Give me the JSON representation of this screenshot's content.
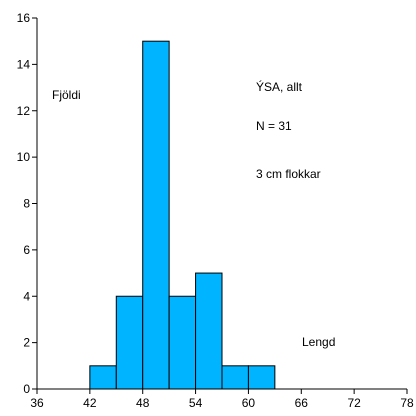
{
  "chart_data": {
    "type": "bar",
    "bin_width": 3,
    "bins": [
      {
        "start": 42,
        "end": 45,
        "count": 1
      },
      {
        "start": 45,
        "end": 48,
        "count": 4
      },
      {
        "start": 48,
        "end": 51,
        "count": 15
      },
      {
        "start": 51,
        "end": 54,
        "count": 4
      },
      {
        "start": 54,
        "end": 57,
        "count": 5
      },
      {
        "start": 57,
        "end": 60,
        "count": 1
      },
      {
        "start": 60,
        "end": 63,
        "count": 1
      }
    ],
    "xlim": [
      36,
      78
    ],
    "ylim": [
      0,
      16
    ],
    "x_ticks": [
      36,
      42,
      48,
      54,
      60,
      66,
      72,
      78
    ],
    "y_ticks": [
      0,
      2,
      4,
      6,
      8,
      10,
      12,
      14,
      16
    ],
    "bar_color": "#00B4FF",
    "grid": false,
    "ylabel": "Fjöldi",
    "xlabel": "Lengd",
    "annotations": [
      "ÝSA, allt",
      "N = 31",
      "3 cm flokkar"
    ]
  }
}
